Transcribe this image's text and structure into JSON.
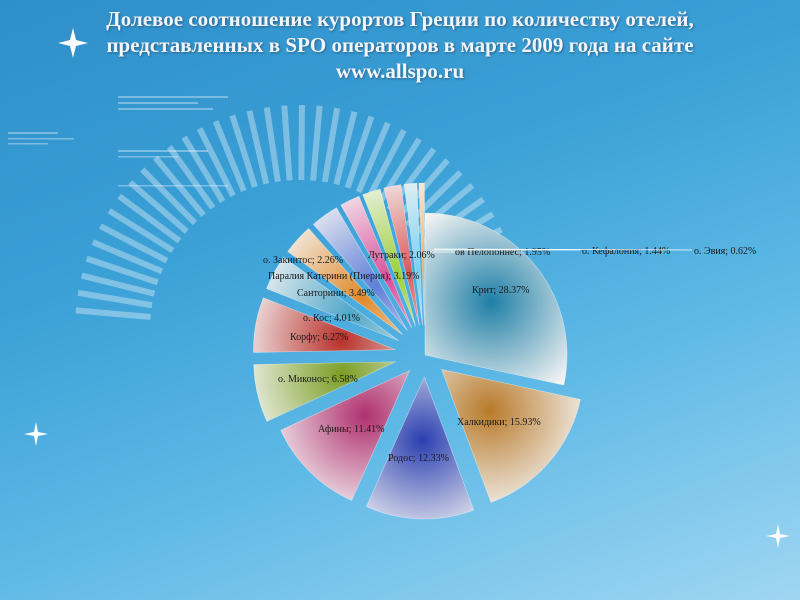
{
  "title_lines": [
    "Долевое соотношение курортов Греции по количеству отелей,",
    "представленных в SPO операторов в марте 2009 года на сайте",
    "www.allspo.ru"
  ],
  "chart_data": {
    "type": "pie",
    "exploded": true,
    "series": [
      {
        "label": "Крит; 28.37%",
        "value": 28.37,
        "color": "#1f7fa6"
      },
      {
        "label": "Халкидики; 15.93%",
        "value": 15.93,
        "color": "#b87a2a"
      },
      {
        "label": "Родос; 12.33%",
        "value": 12.33,
        "color": "#2a3fb0"
      },
      {
        "label": "Афины; 11.41%",
        "value": 11.41,
        "color": "#b0306e"
      },
      {
        "label": "о. Миконос; 6.58%",
        "value": 6.58,
        "color": "#7a9e22"
      },
      {
        "label": "Корфу; 6.27%",
        "value": 6.27,
        "color": "#b8302a"
      },
      {
        "label": "о. Кос; 4.01%",
        "value": 4.01,
        "color": "#4fa6c9"
      },
      {
        "label": "Санторини; 3.49%",
        "value": 3.49,
        "color": "#e08a2a"
      },
      {
        "label": "Паралия Катерини (Пиерия); 3.19%",
        "value": 3.19,
        "color": "#5f7fd8"
      },
      {
        "label": "о. Закинтос; 2.26%",
        "value": 2.26,
        "color": "#d84f9a"
      },
      {
        "label": "Лутраки; 2.06%",
        "value": 2.06,
        "color": "#9ccf3a"
      },
      {
        "label": "ов Пелопоннес; 1.95%",
        "value": 1.95,
        "color": "#d85a5a"
      },
      {
        "label": "о. Кефалония; 1.44%",
        "value": 1.44,
        "color": "#7ad0f0"
      },
      {
        "label": "о. Эвия; 0.62%",
        "value": 0.62,
        "color": "#f0b060"
      }
    ]
  }
}
